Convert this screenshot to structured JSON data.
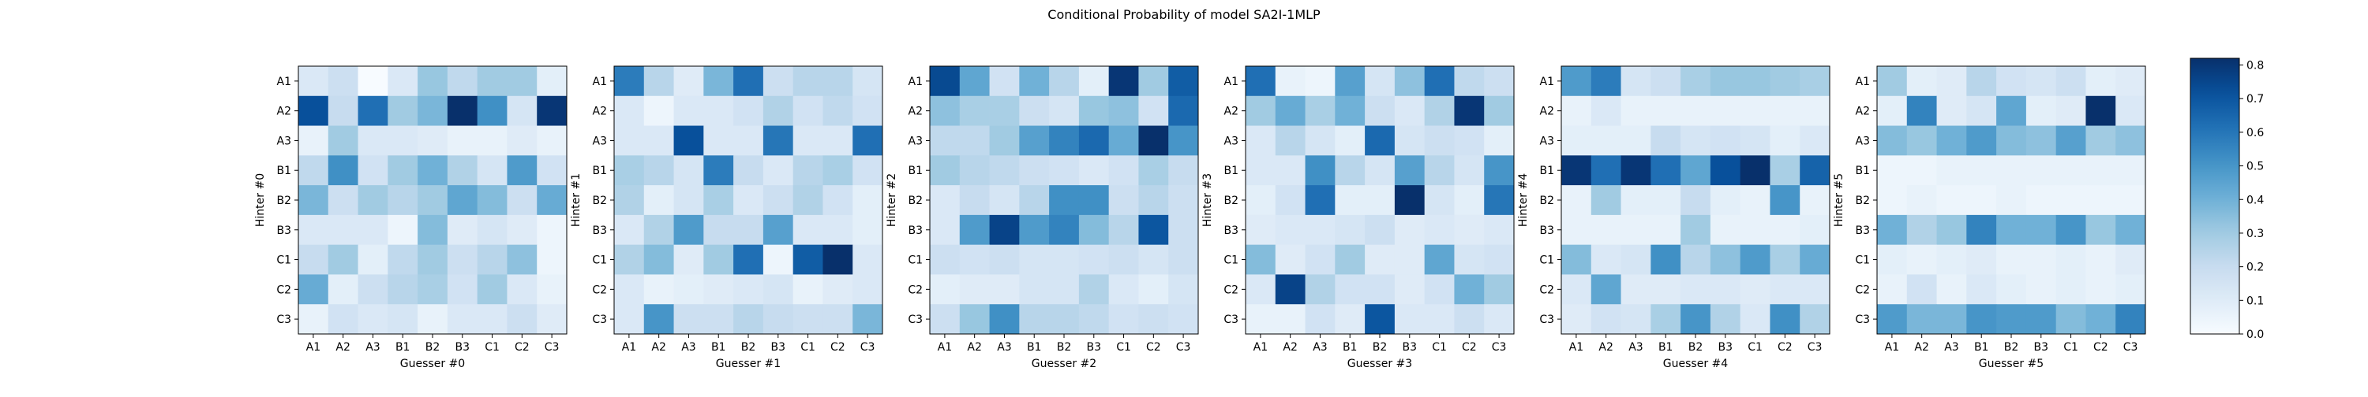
{
  "chart_data": {
    "type": "heatmap",
    "title": "Conditional Probability of model SA2I-1MLP",
    "labels": [
      "A1",
      "A2",
      "A3",
      "B1",
      "B2",
      "B3",
      "C1",
      "C2",
      "C3"
    ],
    "colorbar": {
      "min": 0.0,
      "max": 0.82,
      "ticks": [
        0.0,
        0.1,
        0.2,
        0.3,
        0.4,
        0.5,
        0.6,
        0.7,
        0.8
      ],
      "tick_labels": [
        "0.0",
        "0.1",
        "0.2",
        "0.3",
        "0.4",
        "0.5",
        "0.6",
        "0.7",
        "0.8"
      ],
      "colormap": "Blues"
    },
    "panels": [
      {
        "xlabel": "Guesser #0",
        "ylabel": "Hinter #0",
        "matrix": [
          [
            0.12,
            0.18,
            0.0,
            0.12,
            0.32,
            0.22,
            0.3,
            0.3,
            0.08
          ],
          [
            0.72,
            0.2,
            0.62,
            0.3,
            0.38,
            0.82,
            0.52,
            0.14,
            0.8
          ],
          [
            0.06,
            0.3,
            0.12,
            0.12,
            0.1,
            0.06,
            0.06,
            0.1,
            0.06
          ],
          [
            0.22,
            0.52,
            0.16,
            0.3,
            0.4,
            0.26,
            0.14,
            0.48,
            0.16
          ],
          [
            0.38,
            0.18,
            0.3,
            0.24,
            0.3,
            0.44,
            0.36,
            0.18,
            0.42
          ],
          [
            0.12,
            0.12,
            0.12,
            0.04,
            0.36,
            0.1,
            0.14,
            0.1,
            0.04
          ],
          [
            0.2,
            0.3,
            0.08,
            0.22,
            0.3,
            0.18,
            0.24,
            0.34,
            0.04
          ],
          [
            0.42,
            0.08,
            0.18,
            0.24,
            0.28,
            0.16,
            0.3,
            0.12,
            0.06
          ],
          [
            0.06,
            0.16,
            0.12,
            0.14,
            0.06,
            0.12,
            0.12,
            0.18,
            0.1
          ]
        ]
      },
      {
        "xlabel": "Guesser #1",
        "ylabel": "Hinter #1",
        "matrix": [
          [
            0.58,
            0.24,
            0.1,
            0.38,
            0.62,
            0.18,
            0.24,
            0.24,
            0.14
          ],
          [
            0.12,
            0.04,
            0.12,
            0.12,
            0.16,
            0.26,
            0.16,
            0.22,
            0.16
          ],
          [
            0.12,
            0.12,
            0.72,
            0.12,
            0.12,
            0.6,
            0.12,
            0.12,
            0.62
          ],
          [
            0.28,
            0.24,
            0.14,
            0.58,
            0.2,
            0.12,
            0.24,
            0.28,
            0.16
          ],
          [
            0.26,
            0.08,
            0.14,
            0.28,
            0.12,
            0.18,
            0.26,
            0.16,
            0.08
          ],
          [
            0.12,
            0.26,
            0.48,
            0.2,
            0.2,
            0.46,
            0.12,
            0.12,
            0.08
          ],
          [
            0.26,
            0.36,
            0.1,
            0.3,
            0.62,
            0.04,
            0.68,
            0.82,
            0.12
          ],
          [
            0.12,
            0.06,
            0.08,
            0.1,
            0.12,
            0.14,
            0.06,
            0.1,
            0.12
          ],
          [
            0.12,
            0.5,
            0.18,
            0.18,
            0.24,
            0.2,
            0.18,
            0.18,
            0.38
          ]
        ]
      },
      {
        "xlabel": "Guesser #2",
        "ylabel": "Hinter #2",
        "matrix": [
          [
            0.74,
            0.44,
            0.16,
            0.4,
            0.24,
            0.08,
            0.8,
            0.3,
            0.68
          ],
          [
            0.34,
            0.28,
            0.28,
            0.18,
            0.14,
            0.32,
            0.34,
            0.16,
            0.64
          ],
          [
            0.22,
            0.22,
            0.3,
            0.46,
            0.56,
            0.64,
            0.42,
            0.82,
            0.5
          ],
          [
            0.3,
            0.24,
            0.22,
            0.18,
            0.16,
            0.12,
            0.16,
            0.28,
            0.2
          ],
          [
            0.12,
            0.2,
            0.14,
            0.24,
            0.52,
            0.52,
            0.18,
            0.24,
            0.18
          ],
          [
            0.12,
            0.48,
            0.76,
            0.48,
            0.56,
            0.36,
            0.24,
            0.7,
            0.18
          ],
          [
            0.18,
            0.16,
            0.18,
            0.14,
            0.14,
            0.16,
            0.18,
            0.14,
            0.18
          ],
          [
            0.08,
            0.1,
            0.1,
            0.14,
            0.14,
            0.26,
            0.12,
            0.08,
            0.14
          ],
          [
            0.18,
            0.32,
            0.52,
            0.24,
            0.24,
            0.22,
            0.16,
            0.18,
            0.16
          ]
        ]
      },
      {
        "xlabel": "Guesser #3",
        "ylabel": "Hinter #3",
        "matrix": [
          [
            0.62,
            0.06,
            0.04,
            0.46,
            0.14,
            0.34,
            0.62,
            0.22,
            0.18
          ],
          [
            0.3,
            0.42,
            0.28,
            0.4,
            0.18,
            0.12,
            0.26,
            0.8,
            0.3
          ],
          [
            0.12,
            0.24,
            0.14,
            0.08,
            0.64,
            0.14,
            0.18,
            0.16,
            0.08
          ],
          [
            0.12,
            0.12,
            0.52,
            0.24,
            0.14,
            0.46,
            0.24,
            0.14,
            0.5
          ],
          [
            0.08,
            0.16,
            0.62,
            0.08,
            0.08,
            0.82,
            0.14,
            0.08,
            0.6
          ],
          [
            0.1,
            0.12,
            0.12,
            0.14,
            0.18,
            0.1,
            0.12,
            0.1,
            0.12
          ],
          [
            0.36,
            0.1,
            0.16,
            0.3,
            0.1,
            0.1,
            0.44,
            0.14,
            0.16
          ],
          [
            0.12,
            0.76,
            0.26,
            0.16,
            0.16,
            0.1,
            0.16,
            0.4,
            0.3
          ],
          [
            0.06,
            0.06,
            0.16,
            0.1,
            0.7,
            0.12,
            0.12,
            0.18,
            0.12
          ]
        ]
      },
      {
        "xlabel": "Guesser #4",
        "ylabel": "Hinter #4",
        "matrix": [
          [
            0.48,
            0.58,
            0.14,
            0.18,
            0.28,
            0.32,
            0.32,
            0.3,
            0.28
          ],
          [
            0.06,
            0.12,
            0.06,
            0.06,
            0.06,
            0.06,
            0.06,
            0.06,
            0.06
          ],
          [
            0.08,
            0.08,
            0.08,
            0.2,
            0.14,
            0.16,
            0.14,
            0.08,
            0.12
          ],
          [
            0.8,
            0.62,
            0.8,
            0.62,
            0.44,
            0.72,
            0.82,
            0.28,
            0.66
          ],
          [
            0.06,
            0.3,
            0.08,
            0.08,
            0.2,
            0.08,
            0.06,
            0.5,
            0.06
          ],
          [
            0.06,
            0.06,
            0.06,
            0.06,
            0.3,
            0.06,
            0.06,
            0.06,
            0.08
          ],
          [
            0.36,
            0.12,
            0.14,
            0.52,
            0.24,
            0.34,
            0.48,
            0.28,
            0.42
          ],
          [
            0.12,
            0.44,
            0.1,
            0.1,
            0.12,
            0.12,
            0.1,
            0.12,
            0.12
          ],
          [
            0.1,
            0.16,
            0.14,
            0.28,
            0.5,
            0.26,
            0.12,
            0.52,
            0.26
          ]
        ]
      },
      {
        "xlabel": "Guesser #5",
        "ylabel": "Hinter #5",
        "matrix": [
          [
            0.3,
            0.08,
            0.1,
            0.24,
            0.16,
            0.14,
            0.18,
            0.08,
            0.1
          ],
          [
            0.08,
            0.56,
            0.1,
            0.14,
            0.44,
            0.08,
            0.1,
            0.82,
            0.12
          ],
          [
            0.36,
            0.32,
            0.4,
            0.48,
            0.36,
            0.34,
            0.46,
            0.3,
            0.34
          ],
          [
            0.04,
            0.04,
            0.06,
            0.06,
            0.06,
            0.06,
            0.06,
            0.06,
            0.06
          ],
          [
            0.04,
            0.06,
            0.04,
            0.04,
            0.06,
            0.04,
            0.04,
            0.04,
            0.04
          ],
          [
            0.4,
            0.26,
            0.32,
            0.56,
            0.4,
            0.4,
            0.5,
            0.32,
            0.4
          ],
          [
            0.08,
            0.06,
            0.08,
            0.1,
            0.06,
            0.06,
            0.08,
            0.06,
            0.1
          ],
          [
            0.06,
            0.16,
            0.06,
            0.12,
            0.08,
            0.06,
            0.08,
            0.06,
            0.08
          ],
          [
            0.48,
            0.38,
            0.38,
            0.5,
            0.48,
            0.48,
            0.36,
            0.4,
            0.56
          ]
        ]
      }
    ]
  }
}
